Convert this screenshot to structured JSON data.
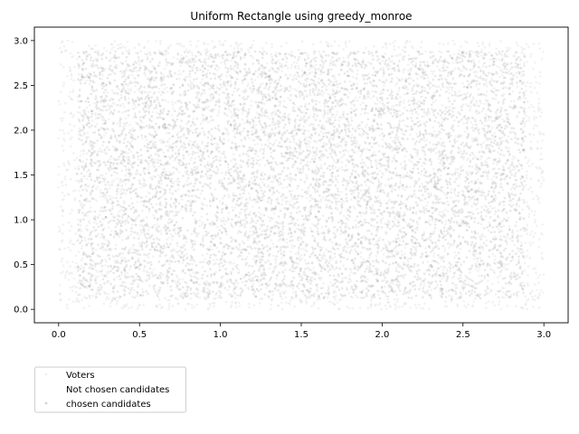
{
  "chart_data": {
    "type": "scatter",
    "title": "Uniform Rectangle using greedy_monroe",
    "xlabel": "",
    "ylabel": "",
    "xlim": [
      -0.15,
      3.15
    ],
    "ylim": [
      -0.15,
      3.15
    ],
    "xticks": [
      0.0,
      0.5,
      1.0,
      1.5,
      2.0,
      2.5,
      3.0
    ],
    "xtick_labels": [
      "0.0",
      "0.5",
      "1.0",
      "1.5",
      "2.0",
      "2.5",
      "3.0"
    ],
    "yticks": [
      0.0,
      0.5,
      1.0,
      1.5,
      2.0,
      2.5,
      3.0
    ],
    "ytick_labels": [
      "0.0",
      "0.5",
      "1.0",
      "1.5",
      "2.0",
      "2.5",
      "3.0"
    ],
    "grid": false,
    "legend_position": "below-left",
    "series": [
      {
        "name": "Voters",
        "distribution": "uniform",
        "x_range": [
          0,
          3
        ],
        "y_range": [
          0,
          3
        ],
        "color": "#cccccc"
      },
      {
        "name": "Not chosen candidates",
        "color": "#ffffff"
      },
      {
        "name": "chosen candidates",
        "distribution": "uniform",
        "x_range": [
          0,
          3
        ],
        "y_range": [
          0,
          3
        ],
        "color": "#999999"
      }
    ]
  }
}
